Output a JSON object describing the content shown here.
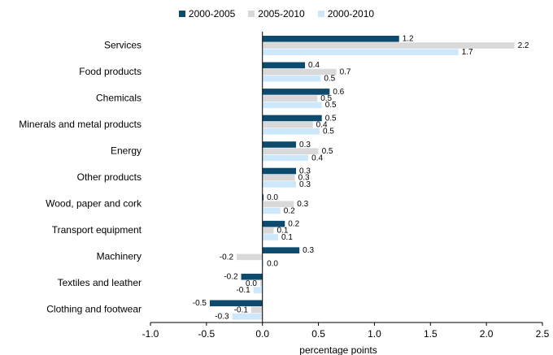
{
  "chart_data": {
    "type": "bar",
    "orientation": "horizontal",
    "categories": [
      "Services",
      "Food products",
      "Chemicals",
      "Minerals and metal products",
      "Energy",
      "Other products",
      "Wood, paper and cork",
      "Transport equipment",
      "Machinery",
      "Textiles and leather",
      "Clothing and footwear"
    ],
    "series": [
      {
        "name": "2000-2005",
        "color": "#0d4b6e",
        "values": [
          1.22,
          0.38,
          0.6,
          0.53,
          0.3,
          0.3,
          0.01,
          0.2,
          0.33,
          -0.19,
          -0.47
        ],
        "labels": [
          "1.2",
          "0.4",
          "0.6",
          "0.5",
          "0.3",
          "0.3",
          "0.0",
          "0.2",
          "0.3",
          "-0.2",
          "-0.5"
        ]
      },
      {
        "name": "2005-2010",
        "color": "#d9d9d9",
        "values": [
          2.25,
          0.66,
          0.49,
          0.45,
          0.5,
          0.29,
          0.28,
          0.1,
          -0.23,
          -0.02,
          -0.1
        ],
        "labels": [
          "2.2",
          "0.7",
          "0.5",
          "0.4",
          "0.5",
          "0.3",
          "0.3",
          "0.1",
          "-0.2",
          "0.0",
          "-0.1"
        ]
      },
      {
        "name": "2000-2010",
        "color": "#cce8fa",
        "values": [
          1.75,
          0.52,
          0.53,
          0.51,
          0.41,
          0.3,
          0.16,
          0.14,
          0.01,
          -0.08,
          -0.27
        ],
        "labels": [
          "1.7",
          "0.5",
          "0.5",
          "0.5",
          "0.4",
          "0.3",
          "0.2",
          "0.1",
          "0.0",
          "-0.1",
          "-0.3"
        ]
      }
    ],
    "xlabel": "percentage points",
    "xlim": [
      -1.0,
      2.5
    ],
    "xticks": [
      -1.0,
      -0.5,
      0.0,
      0.5,
      1.0,
      1.5,
      2.0,
      2.5
    ],
    "xtick_labels": [
      "-1.0",
      "-0.5",
      "0.0",
      "0.5",
      "1.0",
      "1.5",
      "2.0",
      "2.5"
    ],
    "legend_position": "top-center",
    "grid": false
  }
}
